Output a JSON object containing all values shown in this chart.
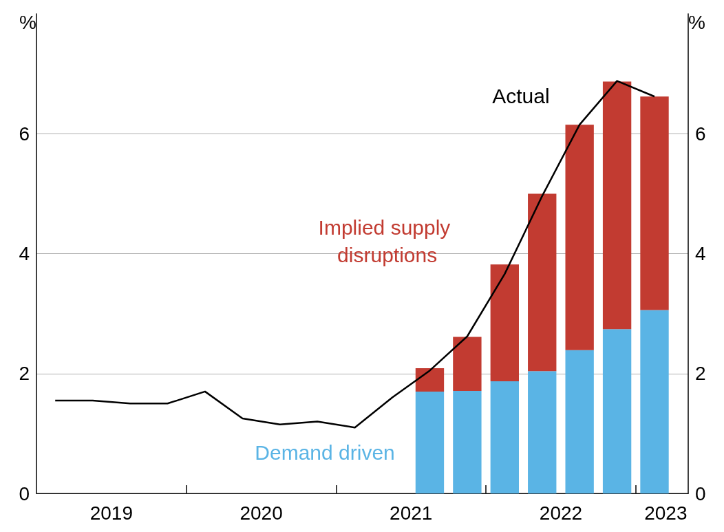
{
  "chart_data": {
    "type": "bar",
    "stacked": true,
    "ylabel": "%",
    "y2label": "%",
    "x": [
      2019.125,
      2019.375,
      2019.625,
      2019.875,
      2020.125,
      2020.375,
      2020.625,
      2020.875,
      2021.125,
      2021.375,
      2021.625,
      2021.875,
      2022.125,
      2022.375,
      2022.625,
      2022.875,
      2023.125
    ],
    "series": [
      {
        "name": "Demand driven",
        "color": "#5ab4e5",
        "values": [
          null,
          null,
          null,
          null,
          null,
          null,
          null,
          null,
          null,
          null,
          1.7,
          1.71,
          1.87,
          2.04,
          2.39,
          2.74,
          3.06
        ]
      },
      {
        "name": "Implied supply disruptions",
        "color": "#c23b31",
        "values": [
          null,
          null,
          null,
          null,
          null,
          null,
          null,
          null,
          null,
          null,
          0.39,
          0.9,
          1.95,
          2.96,
          3.76,
          4.13,
          3.56
        ]
      },
      {
        "name": "Actual",
        "type": "line",
        "color": "#000000",
        "marker": "none",
        "values": [
          1.55,
          1.55,
          1.5,
          1.5,
          1.7,
          1.25,
          1.15,
          1.2,
          1.1,
          1.6,
          2.05,
          2.62,
          3.66,
          4.96,
          6.15,
          6.88,
          6.62
        ]
      }
    ],
    "xlim": [
      2019,
      2023.35
    ],
    "xticks": [
      {
        "value": 2019.5,
        "label": "2019"
      },
      {
        "value": 2020,
        "label": null
      },
      {
        "value": 2020.5,
        "label": "2020"
      },
      {
        "value": 2021,
        "label": null
      },
      {
        "value": 2021.5,
        "label": "2021"
      },
      {
        "value": 2022,
        "label": null
      },
      {
        "value": 2022.5,
        "label": "2022"
      },
      {
        "value": 2023,
        "label": null
      },
      {
        "value": 2023.2,
        "label": "2023"
      }
    ],
    "ylim": [
      0,
      8
    ],
    "yticks": [
      0,
      2,
      4,
      6
    ],
    "y2lim": [
      0,
      8
    ],
    "y2ticks": [
      0,
      2,
      4,
      6
    ],
    "grid": "y",
    "legend": false
  }
}
